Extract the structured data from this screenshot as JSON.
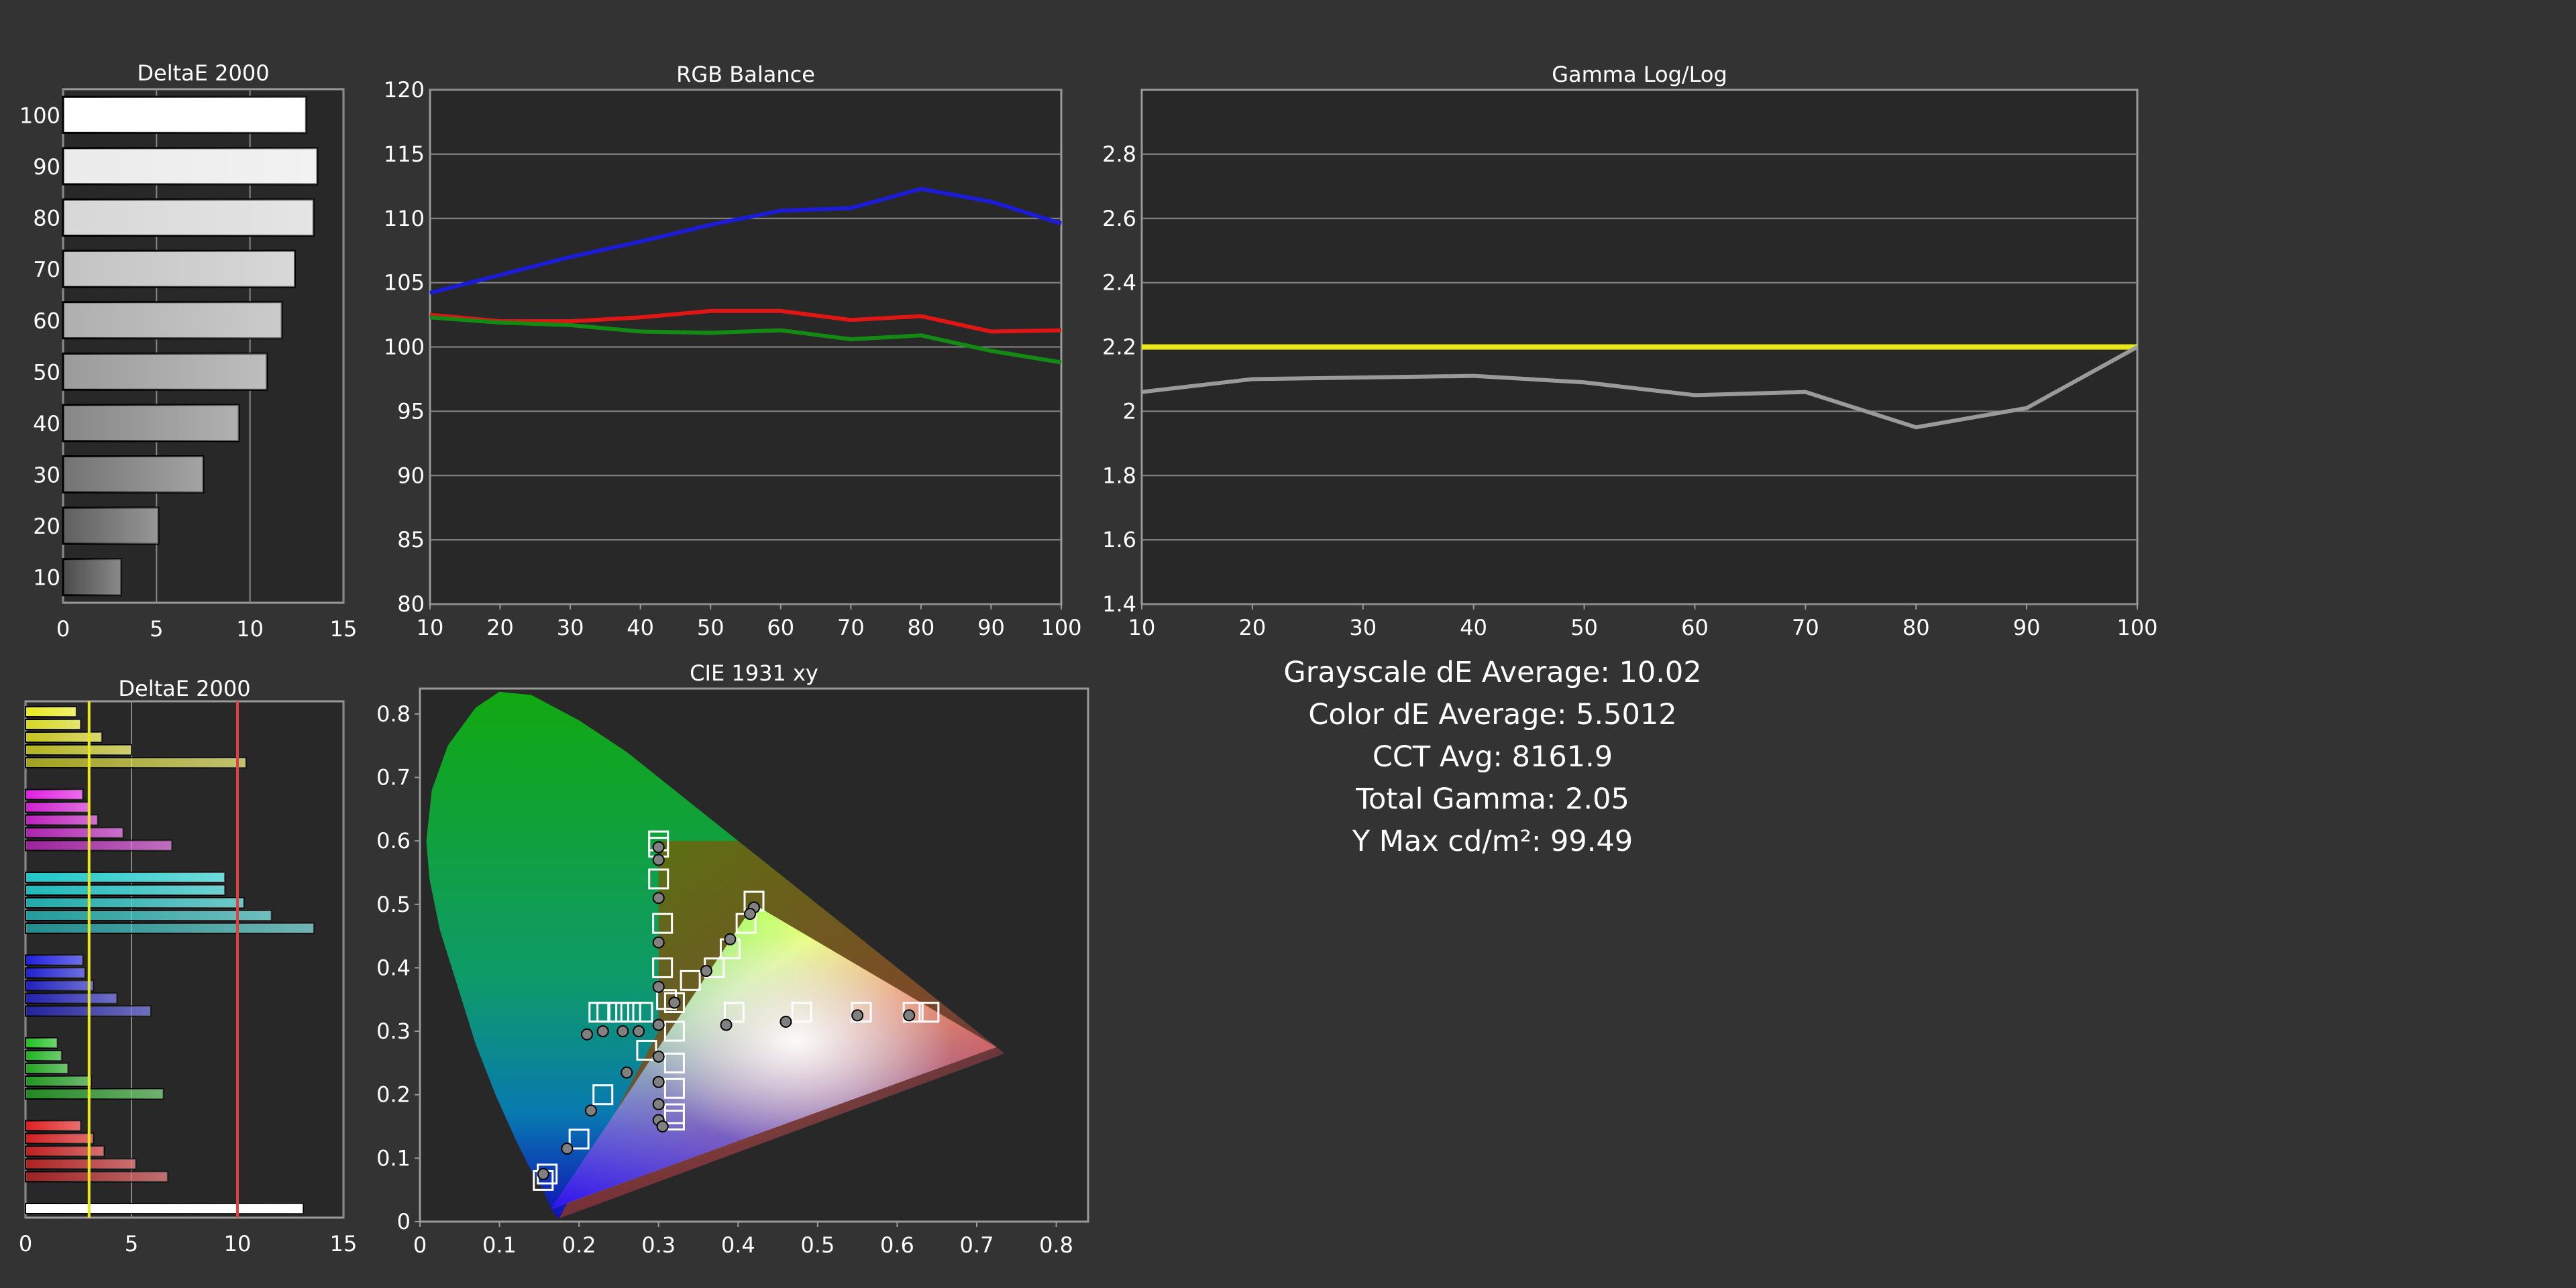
{
  "colors": {
    "background": "#333333",
    "plot_bg": "#282828",
    "grid": "#888888",
    "frame": "#9a9a9a",
    "red": "#e01515",
    "green": "#138a13",
    "blue": "#1c1cd6",
    "gamma_target": "#e8e81a",
    "gamma_measured": "#9a9a9a",
    "threshold_low": "#e8e81a",
    "threshold_high": "#e04040"
  },
  "summary": {
    "grayscale": "Grayscale dE Average: 10.02",
    "color": "Color dE Average: 5.5012",
    "cct": "CCT Avg: 8161.9",
    "gamma": "Total Gamma: 2.05",
    "ymax": "Y Max cd/m²: 99.49"
  },
  "chart_data": [
    {
      "id": "grayscale-delta",
      "type": "bar",
      "orientation": "horizontal",
      "title": "DeltaE 2000",
      "categories": [
        "100",
        "90",
        "80",
        "70",
        "60",
        "50",
        "40",
        "30",
        "20",
        "10"
      ],
      "values": [
        13.0,
        13.6,
        13.4,
        12.4,
        11.7,
        10.9,
        9.4,
        7.5,
        5.1,
        3.1
      ],
      "xlim": [
        0,
        15
      ],
      "xticks": [
        0,
        5,
        10,
        15
      ],
      "grid": true
    },
    {
      "id": "rgb-balance",
      "type": "line",
      "title": "RGB Balance",
      "x": [
        10,
        20,
        30,
        40,
        50,
        60,
        70,
        80,
        90,
        100
      ],
      "series": [
        {
          "color": "red",
          "values": [
            102.5,
            102.0,
            102.0,
            102.3,
            102.8,
            102.8,
            102.1,
            102.4,
            101.2,
            101.3
          ]
        },
        {
          "color": "green",
          "values": [
            102.3,
            101.9,
            101.7,
            101.2,
            101.1,
            101.3,
            100.6,
            100.9,
            99.7,
            98.8
          ]
        },
        {
          "color": "blue",
          "values": [
            104.2,
            105.6,
            107.0,
            108.2,
            109.5,
            110.6,
            110.8,
            112.3,
            111.3,
            109.6
          ]
        }
      ],
      "xlim": [
        10,
        100
      ],
      "ylim": [
        80,
        120
      ],
      "xticks": [
        10,
        20,
        30,
        40,
        50,
        60,
        70,
        80,
        90,
        100
      ],
      "yticks": [
        80,
        85,
        90,
        95,
        100,
        105,
        110,
        115,
        120
      ],
      "grid": true
    },
    {
      "id": "gamma",
      "type": "line",
      "title": "Gamma Log/Log",
      "x": [
        10,
        20,
        30,
        40,
        50,
        60,
        70,
        80,
        90,
        100
      ],
      "series": [
        {
          "color": "gamma_target",
          "values": [
            2.2,
            2.2,
            2.2,
            2.2,
            2.2,
            2.2,
            2.2,
            2.2,
            2.2,
            2.2
          ]
        },
        {
          "color": "gamma_measured",
          "values": [
            2.06,
            2.1,
            2.105,
            2.11,
            2.09,
            2.05,
            2.06,
            1.95,
            2.01,
            2.2
          ]
        }
      ],
      "xlim": [
        10,
        100
      ],
      "ylim": [
        1.4,
        3.0
      ],
      "xticks": [
        10,
        20,
        30,
        40,
        50,
        60,
        70,
        80,
        90,
        100
      ],
      "yticks": [
        1.4,
        1.6,
        1.8,
        2,
        2.2,
        2.4,
        2.6,
        2.8
      ],
      "ytick_labels": [
        "1.4",
        "1.6",
        "1.8",
        "2",
        "2.2",
        "2.4",
        "2.6",
        "2.8"
      ],
      "grid": true
    },
    {
      "id": "color-delta",
      "type": "bar",
      "orientation": "horizontal",
      "title": "DeltaE 2000",
      "groups": [
        {
          "color": "#e8e820",
          "values": [
            2.4,
            2.6,
            3.6,
            5.0,
            10.4
          ]
        },
        {
          "color": "#e020e0",
          "values": [
            2.7,
            3.0,
            3.4,
            4.6,
            6.9
          ]
        },
        {
          "color": "#20c8c8",
          "values": [
            9.4,
            9.4,
            10.3,
            11.6,
            13.6
          ]
        },
        {
          "color": "#2020e0",
          "values": [
            2.7,
            2.8,
            3.2,
            4.3,
            5.9
          ]
        },
        {
          "color": "#20c020",
          "values": [
            1.5,
            1.7,
            2.0,
            3.1,
            6.5
          ]
        },
        {
          "color": "#e02020",
          "values": [
            2.6,
            3.2,
            3.7,
            5.2,
            6.7
          ]
        },
        {
          "color": "#ffffff",
          "values": [
            13.1
          ]
        }
      ],
      "xlim": [
        0,
        15
      ],
      "xticks": [
        0,
        5,
        10,
        15
      ],
      "thresholds": [
        {
          "value": 3,
          "color": "threshold_low"
        },
        {
          "value": 10,
          "color": "threshold_high"
        }
      ],
      "grid": true
    },
    {
      "id": "cie",
      "type": "scatter",
      "title": "CIE 1931 xy",
      "xlim": [
        0,
        0.84
      ],
      "ylim": [
        0,
        0.84
      ],
      "xticks": [
        0,
        0.1,
        0.2,
        0.3,
        0.4,
        0.5,
        0.6,
        0.7,
        0.8
      ],
      "yticks": [
        0,
        0.1,
        0.2,
        0.3,
        0.4,
        0.5,
        0.6,
        0.7,
        0.8
      ],
      "gamut": [
        [
          0.64,
          0.33
        ],
        [
          0.3,
          0.6
        ],
        [
          0.15,
          0.06
        ]
      ],
      "display_gamut": [
        [
          0.725,
          0.275
        ],
        [
          0.42,
          0.5
        ],
        [
          0.165,
          0.02
        ]
      ],
      "targets": [
        [
          0.3,
          0.6
        ],
        [
          0.3,
          0.59
        ],
        [
          0.3,
          0.54
        ],
        [
          0.305,
          0.47
        ],
        [
          0.305,
          0.4
        ],
        [
          0.31,
          0.35
        ],
        [
          0.42,
          0.505
        ],
        [
          0.41,
          0.47
        ],
        [
          0.39,
          0.43
        ],
        [
          0.37,
          0.4
        ],
        [
          0.34,
          0.38
        ],
        [
          0.32,
          0.345
        ],
        [
          0.64,
          0.33
        ],
        [
          0.62,
          0.33
        ],
        [
          0.555,
          0.33
        ],
        [
          0.48,
          0.33
        ],
        [
          0.395,
          0.33
        ],
        [
          0.225,
          0.33
        ],
        [
          0.235,
          0.33
        ],
        [
          0.25,
          0.33
        ],
        [
          0.265,
          0.33
        ],
        [
          0.28,
          0.33
        ],
        [
          0.32,
          0.3
        ],
        [
          0.32,
          0.25
        ],
        [
          0.32,
          0.21
        ],
        [
          0.32,
          0.17
        ],
        [
          0.32,
          0.16
        ],
        [
          0.285,
          0.27
        ],
        [
          0.23,
          0.2
        ],
        [
          0.2,
          0.13
        ],
        [
          0.155,
          0.065
        ],
        [
          0.16,
          0.075
        ]
      ],
      "measured": [
        [
          0.3,
          0.59
        ],
        [
          0.3,
          0.57
        ],
        [
          0.3,
          0.51
        ],
        [
          0.3,
          0.44
        ],
        [
          0.3,
          0.37
        ],
        [
          0.32,
          0.345
        ],
        [
          0.42,
          0.495
        ],
        [
          0.415,
          0.485
        ],
        [
          0.39,
          0.445
        ],
        [
          0.36,
          0.395
        ],
        [
          0.3,
          0.31
        ],
        [
          0.615,
          0.325
        ],
        [
          0.55,
          0.325
        ],
        [
          0.46,
          0.315
        ],
        [
          0.385,
          0.31
        ],
        [
          0.21,
          0.295
        ],
        [
          0.23,
          0.3
        ],
        [
          0.255,
          0.3
        ],
        [
          0.275,
          0.3
        ],
        [
          0.3,
          0.26
        ],
        [
          0.3,
          0.22
        ],
        [
          0.3,
          0.185
        ],
        [
          0.3,
          0.16
        ],
        [
          0.305,
          0.15
        ],
        [
          0.26,
          0.235
        ],
        [
          0.215,
          0.175
        ],
        [
          0.185,
          0.115
        ],
        [
          0.155,
          0.075
        ]
      ]
    }
  ]
}
